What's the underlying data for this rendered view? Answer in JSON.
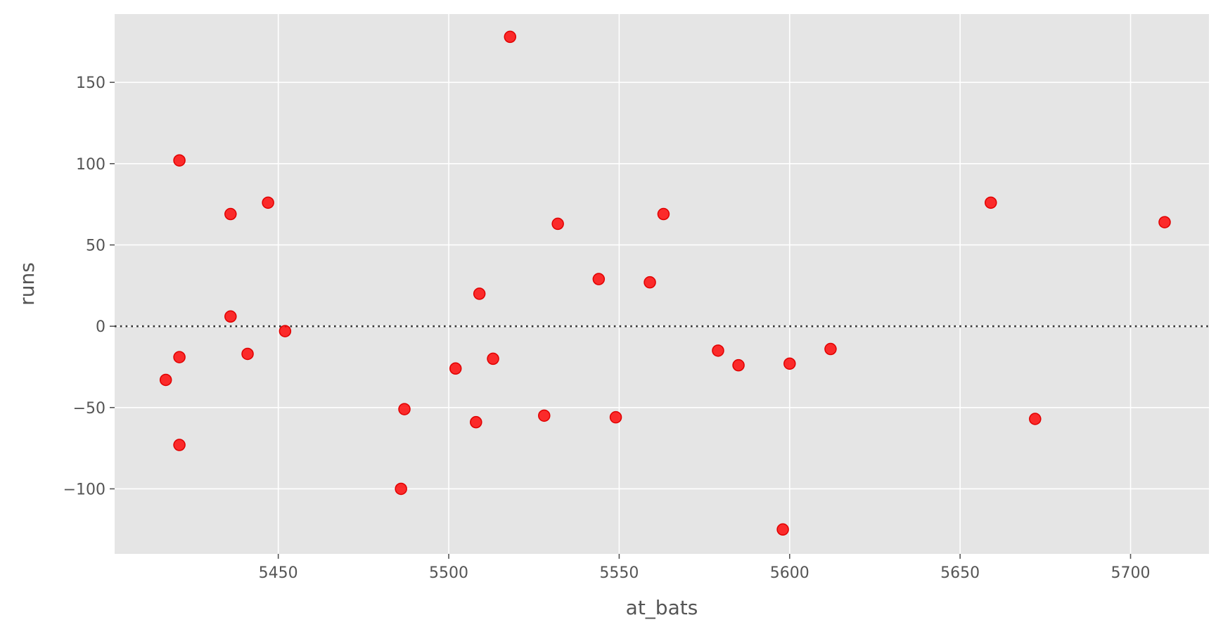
{
  "chart_data": {
    "type": "scatter",
    "xlabel": "at_bats",
    "ylabel": "runs",
    "xlim": [
      5402,
      5723
    ],
    "ylim": [
      -140,
      192
    ],
    "xticks": [
      5450,
      5500,
      5550,
      5600,
      5650,
      5700
    ],
    "xtick_labels": [
      "5450",
      "5500",
      "5550",
      "5600",
      "5650",
      "5700"
    ],
    "yticks": [
      -100,
      -50,
      0,
      50,
      100,
      150
    ],
    "ytick_labels": [
      "−100",
      "−50",
      "0",
      "50",
      "100",
      "150"
    ],
    "grid": true,
    "reference_line_y": 0,
    "colors": {
      "background": "#e5e5e5",
      "grid": "#ffffff",
      "point": "#ff0000",
      "reference_line": "#333333"
    },
    "series": [
      {
        "points": [
          [
            5417,
            -33
          ],
          [
            5421,
            102
          ],
          [
            5421,
            -19
          ],
          [
            5421,
            -73
          ],
          [
            5436,
            69
          ],
          [
            5436,
            6
          ],
          [
            5441,
            -17
          ],
          [
            5447,
            76
          ],
          [
            5452,
            -3
          ],
          [
            5486,
            -100
          ],
          [
            5487,
            -51
          ],
          [
            5502,
            -26
          ],
          [
            5508,
            -59
          ],
          [
            5509,
            20
          ],
          [
            5513,
            -20
          ],
          [
            5518,
            178
          ],
          [
            5528,
            -55
          ],
          [
            5532,
            63
          ],
          [
            5544,
            29
          ],
          [
            5549,
            -56
          ],
          [
            5559,
            27
          ],
          [
            5563,
            69
          ],
          [
            5579,
            -15
          ],
          [
            5585,
            -24
          ],
          [
            5598,
            -125
          ],
          [
            5600,
            -23
          ],
          [
            5612,
            -14
          ],
          [
            5659,
            76
          ],
          [
            5672,
            -57
          ],
          [
            5710,
            64
          ]
        ]
      }
    ]
  }
}
